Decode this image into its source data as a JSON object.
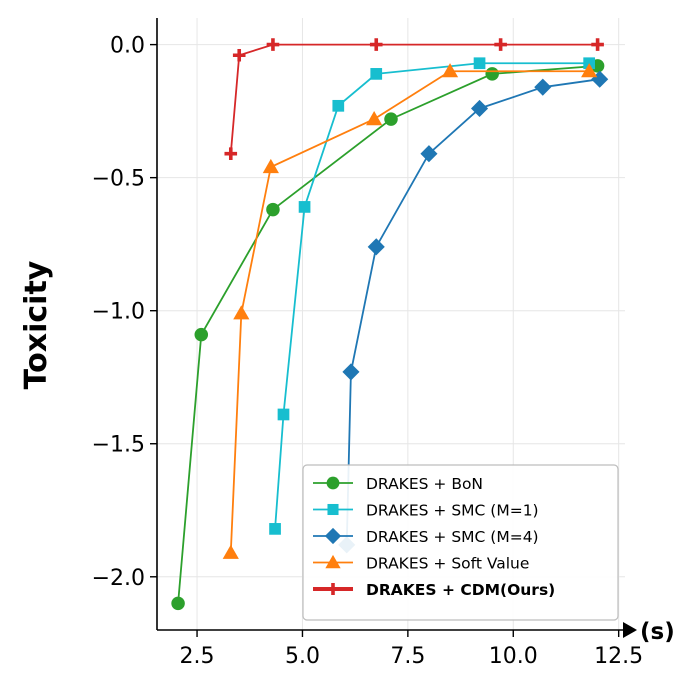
{
  "chart_data": {
    "type": "line",
    "title": "",
    "xlabel": "(s)",
    "ylabel": "Toxicity",
    "xlim": [
      1.55,
      12.65
    ],
    "ylim": [
      -2.2,
      0.1
    ],
    "xticks": [
      2.5,
      5.0,
      7.5,
      10.0,
      12.5
    ],
    "xtick_labels": [
      "2.5",
      "5.0",
      "7.5",
      "10.0",
      "12.5"
    ],
    "yticks": [
      0.0,
      -0.5,
      -1.0,
      -1.5,
      -2.0
    ],
    "ytick_labels": [
      "0.0",
      "−0.5",
      "−1.0",
      "−1.5",
      "−2.0"
    ],
    "grid": true,
    "legend_position": "lower-right",
    "series": [
      {
        "name": "DRAKES + BoN",
        "color": "#2ca02c",
        "marker": "circle",
        "bold": false,
        "points": [
          [
            2.05,
            -2.1
          ],
          [
            2.6,
            -1.09
          ],
          [
            4.3,
            -0.62
          ],
          [
            7.1,
            -0.28
          ],
          [
            9.5,
            -0.11
          ],
          [
            12.0,
            -0.08
          ]
        ]
      },
      {
        "name": "DRAKES + SMC (M=1)",
        "color": "#17becf",
        "marker": "square",
        "bold": false,
        "points": [
          [
            4.35,
            -1.82
          ],
          [
            4.55,
            -1.39
          ],
          [
            5.05,
            -0.61
          ],
          [
            5.85,
            -0.23
          ],
          [
            6.75,
            -0.11
          ],
          [
            9.2,
            -0.07
          ],
          [
            11.8,
            -0.07
          ]
        ]
      },
      {
        "name": "DRAKES + SMC (M=4)",
        "color": "#1f77b4",
        "marker": "diamond",
        "bold": false,
        "points": [
          [
            6.05,
            -1.88
          ],
          [
            6.15,
            -1.23
          ],
          [
            6.75,
            -0.76
          ],
          [
            8.0,
            -0.41
          ],
          [
            9.2,
            -0.24
          ],
          [
            10.7,
            -0.16
          ],
          [
            12.05,
            -0.13
          ]
        ]
      },
      {
        "name": "DRAKES + Soft Value",
        "color": "#ff7f0e",
        "marker": "triangle",
        "bold": false,
        "points": [
          [
            3.3,
            -1.91
          ],
          [
            3.55,
            -1.01
          ],
          [
            4.25,
            -0.46
          ],
          [
            6.7,
            -0.28
          ],
          [
            8.5,
            -0.1
          ],
          [
            11.8,
            -0.1
          ]
        ]
      },
      {
        "name": "DRAKES + CDM(Ours)",
        "color": "#d62728",
        "marker": "plus",
        "bold": true,
        "points": [
          [
            3.3,
            -0.41
          ],
          [
            3.5,
            -0.04
          ],
          [
            4.3,
            0.0
          ],
          [
            6.75,
            0.0
          ],
          [
            9.7,
            0.0
          ],
          [
            12.0,
            0.0
          ]
        ]
      }
    ]
  }
}
